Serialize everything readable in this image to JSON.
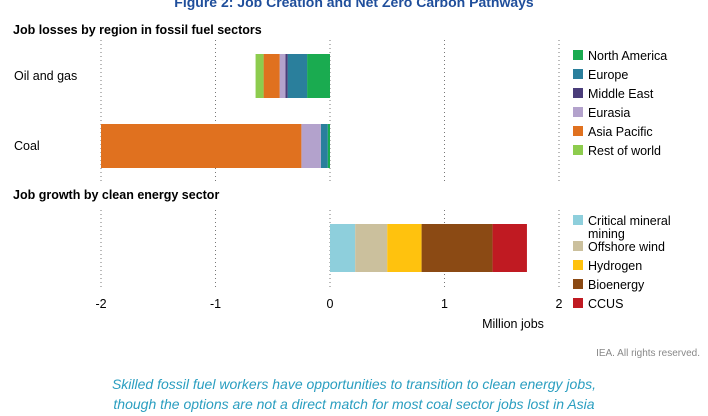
{
  "figure_title": "Figure 2: Job Creation and Net Zero Carbon Pathways",
  "source_note": "IEA. All rights reserved.",
  "caption": [
    "Skilled fossil fuel workers have opportunities to transition to clean energy jobs,",
    "though the options are not a direct match for most coal sector jobs lost in Asia"
  ],
  "chart_data": [
    {
      "type": "bar",
      "orientation": "horizontal",
      "stacked": true,
      "title": "Job losses by region in fossil fuel sectors",
      "categories": [
        "Oil and gas",
        "Coal"
      ],
      "series": [
        {
          "name": "North America",
          "color": "#1aab50",
          "values": [
            -0.2,
            -0.02
          ]
        },
        {
          "name": "Europe",
          "color": "#2a7f9c",
          "values": [
            -0.17,
            -0.06
          ]
        },
        {
          "name": "Middle East",
          "color": "#4a3d7a",
          "values": [
            -0.02,
            0
          ]
        },
        {
          "name": "Eurasia",
          "color": "#b3a2cc",
          "values": [
            -0.05,
            -0.17
          ]
        },
        {
          "name": "Asia Pacific",
          "color": "#e0711f",
          "values": [
            -0.14,
            -1.75
          ]
        },
        {
          "name": "Rest of world",
          "color": "#8dcc4e",
          "values": [
            -0.07,
            0
          ]
        }
      ],
      "xlim": [
        -2,
        2
      ],
      "grid": true,
      "legend_position": "right"
    },
    {
      "type": "bar",
      "orientation": "horizontal",
      "stacked": true,
      "title": "Job growth by clean energy sector",
      "categories": [
        ""
      ],
      "series": [
        {
          "name": "Critical mineral mining",
          "color": "#8ecfdc",
          "values": [
            0.22
          ]
        },
        {
          "name": "Offshore wind",
          "color": "#cbc09d",
          "values": [
            0.28
          ]
        },
        {
          "name": "Hydrogen",
          "color": "#ffc20e",
          "values": [
            0.3
          ]
        },
        {
          "name": "Bioenergy",
          "color": "#8b4a14",
          "values": [
            0.62
          ]
        },
        {
          "name": "CCUS",
          "color": "#c01a22",
          "values": [
            0.3
          ]
        }
      ],
      "xlim": [
        -2,
        2
      ],
      "xticks": [
        -2,
        -1,
        0,
        1,
        2
      ],
      "xtick_labels": [
        "-2",
        "-1",
        "0",
        "1",
        "2"
      ],
      "xlabel": "Million jobs",
      "grid": true,
      "legend_position": "right"
    }
  ]
}
